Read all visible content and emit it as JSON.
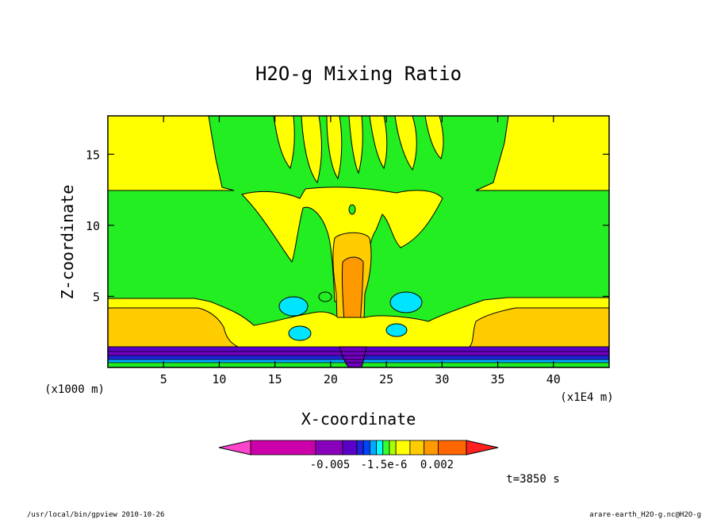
{
  "chart_data": {
    "type": "heatmap",
    "title": "H2O-g Mixing Ratio",
    "xlabel": "X-coordinate",
    "ylabel": "Z-coordinate",
    "x_unit": "(x1E4 m)",
    "y_unit": "(x1000 m)",
    "xlim": [
      0,
      45
    ],
    "ylim": [
      0,
      17.7
    ],
    "xticks": [
      "5",
      "10",
      "15",
      "20",
      "25",
      "30",
      "35",
      "40"
    ],
    "yticks": [
      "5",
      "10",
      "15"
    ],
    "colorbar": {
      "colors": [
        "#ff44cc",
        "#cc00aa",
        "#8800bb",
        "#5a00c8",
        "#2222dd",
        "#0044ff",
        "#00aaff",
        "#00ffff",
        "#33ff33",
        "#aaff00",
        "#ffff00",
        "#ffcc00",
        "#ff9900",
        "#ff6600",
        "#ff2020"
      ],
      "tick_labels": [
        "-0.005",
        "-1.5e-6",
        "0.002"
      ]
    },
    "fill_colors": {
      "deep_negative": "#7000c0",
      "negative": "#00e5ff",
      "near_zero": "#22ee22",
      "small_positive": "#ffff00",
      "mid_positive": "#ffcc00",
      "high_positive": "#ff9900"
    },
    "time_label": "t=3850 s",
    "footer_left": "/usr/local/bin/gpview  2010-10-26",
    "footer_right": "arare-earth_H2O-g.nc@H2O-g"
  }
}
